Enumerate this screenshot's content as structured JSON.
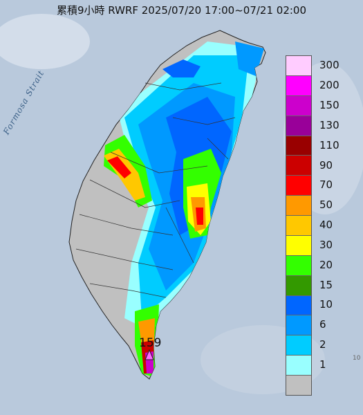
{
  "title": "累積9小時 RWRF 2025/07/20 17:00~07/21 02:00",
  "sea_label": "Formosa Strait",
  "max_value_label": "159",
  "edge_mark": "10",
  "legend": [
    {
      "label": "300",
      "color": "#ffccff"
    },
    {
      "label": "200",
      "color": "#ff00ff"
    },
    {
      "label": "150",
      "color": "#cc00cc"
    },
    {
      "label": "130",
      "color": "#990099"
    },
    {
      "label": "110",
      "color": "#990000"
    },
    {
      "label": "90",
      "color": "#cc0000"
    },
    {
      "label": "70",
      "color": "#ff0000"
    },
    {
      "label": "50",
      "color": "#ff9900"
    },
    {
      "label": "40",
      "color": "#ffc800"
    },
    {
      "label": "30",
      "color": "#ffff00"
    },
    {
      "label": "20",
      "color": "#33ff00"
    },
    {
      "label": "15",
      "color": "#339900"
    },
    {
      "label": "10",
      "color": "#0066ff"
    },
    {
      "label": "6",
      "color": "#0099ff"
    },
    {
      "label": "2",
      "color": "#00ccff"
    },
    {
      "label": "1",
      "color": "#99ffff"
    },
    {
      "label": "",
      "color": "#c0c0c0"
    }
  ]
}
